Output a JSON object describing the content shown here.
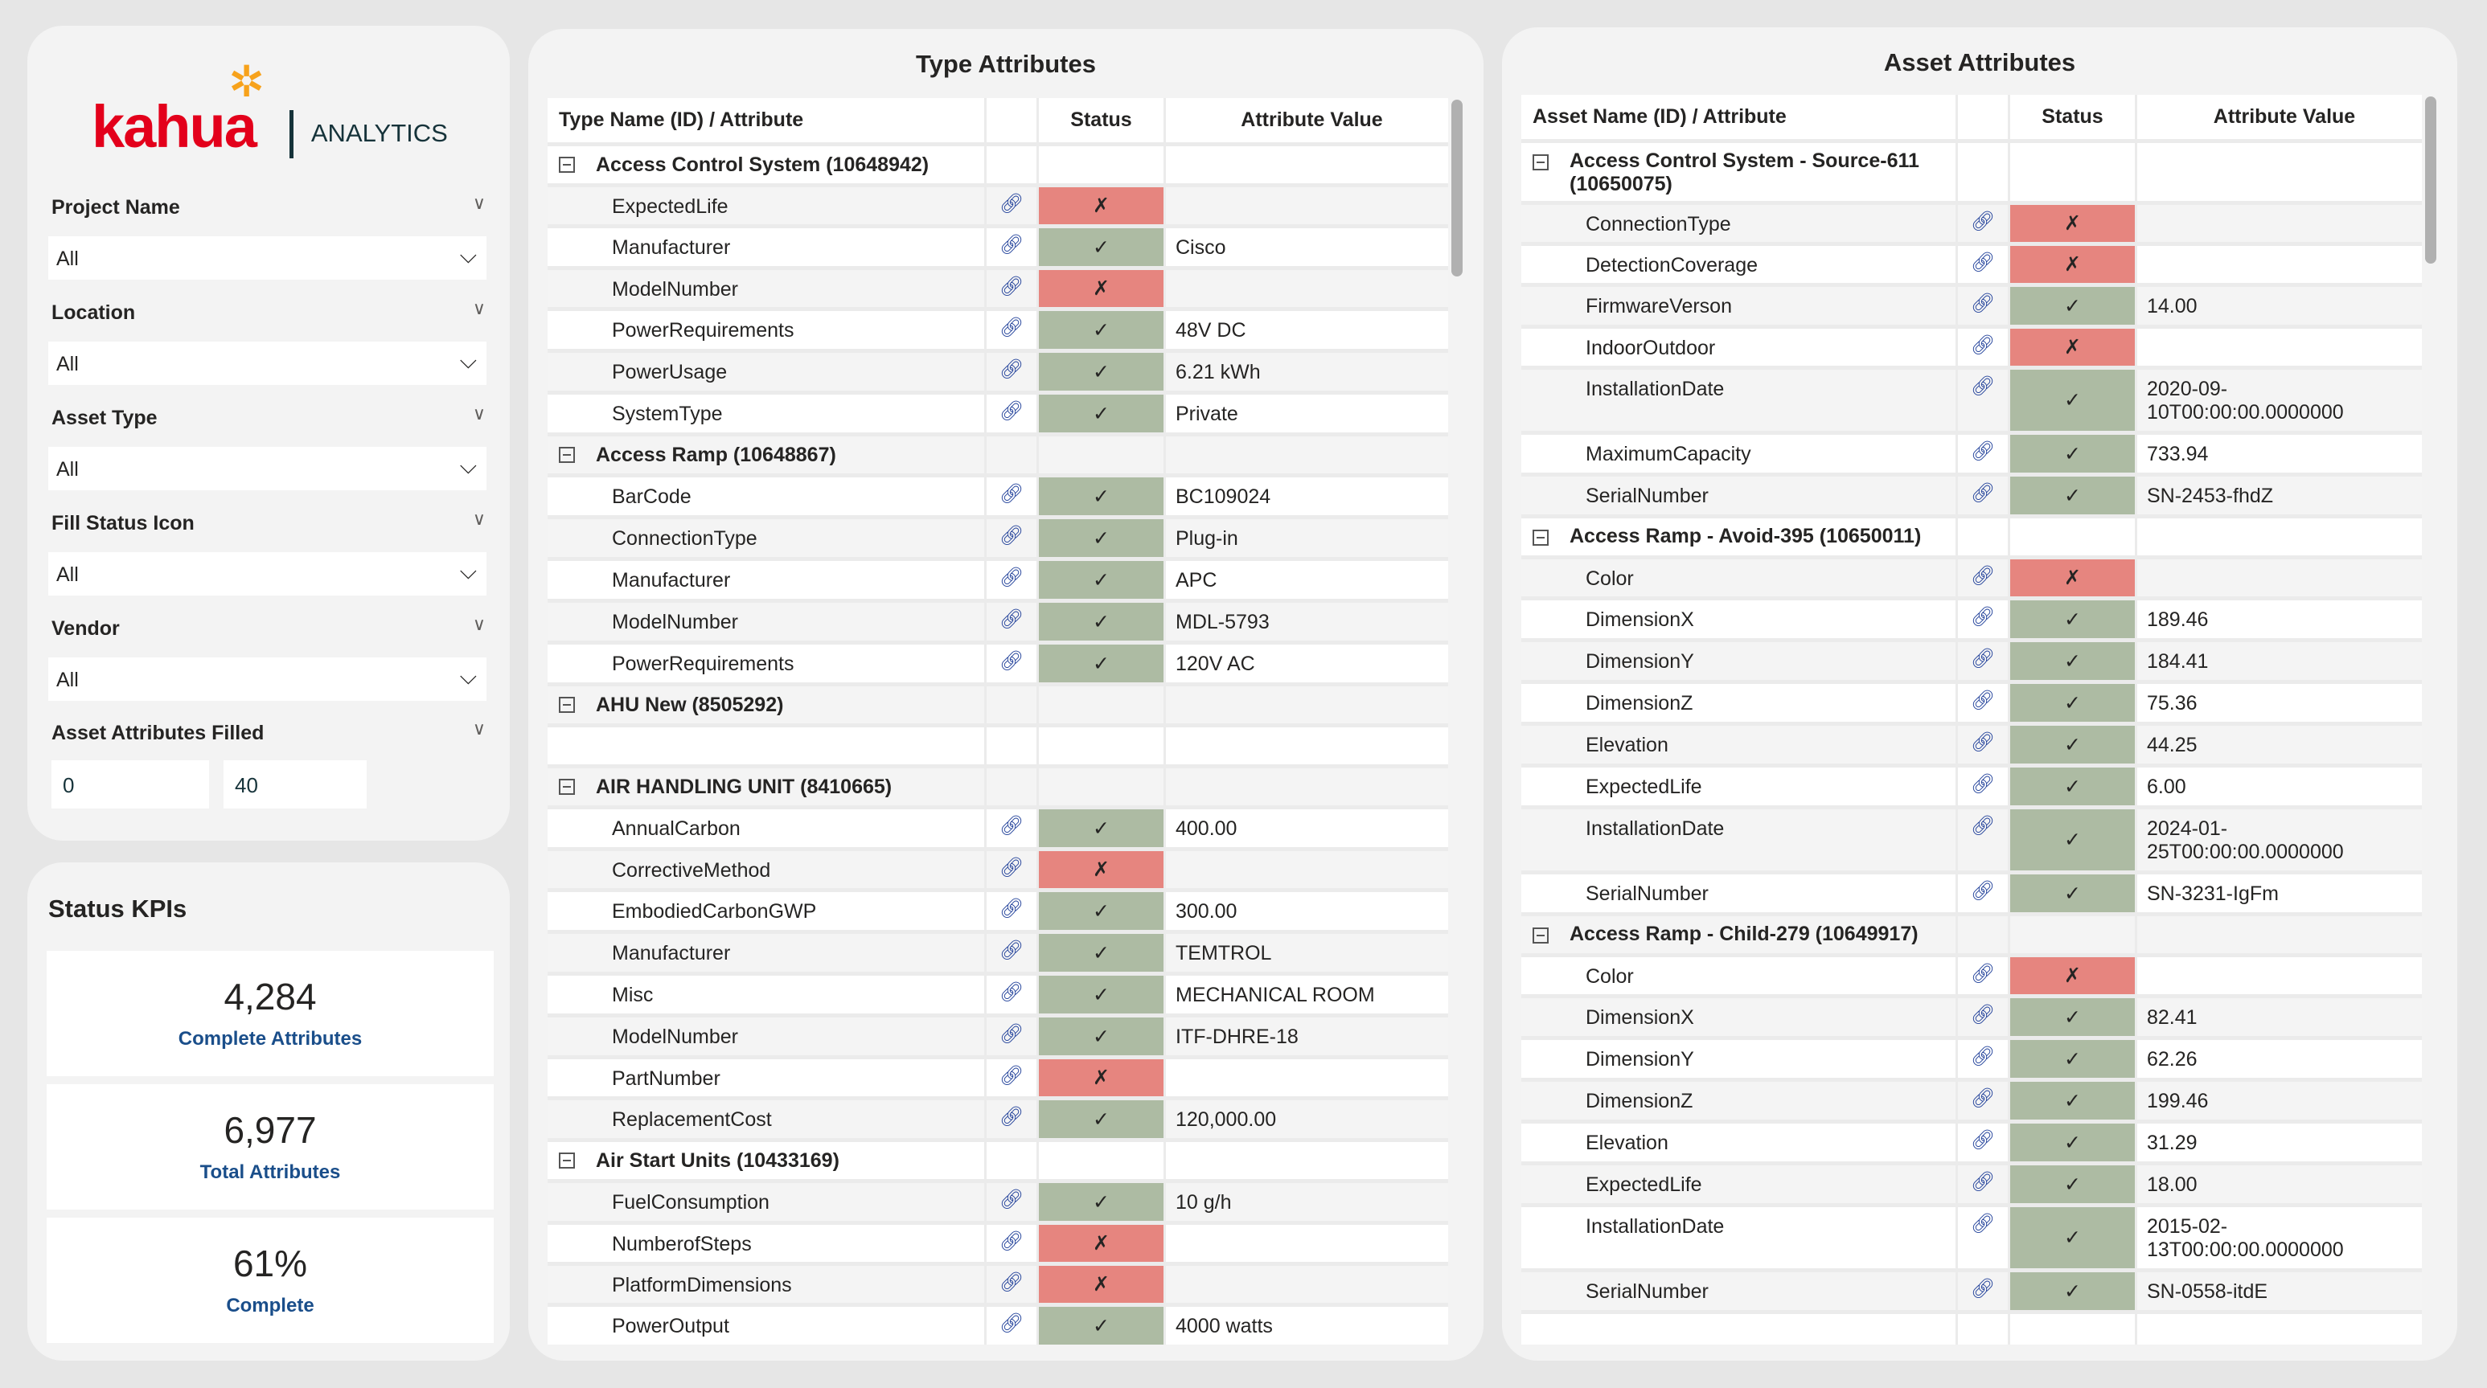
{
  "brand": {
    "logo": "kahua",
    "product": "ANALYTICS"
  },
  "filters": [
    {
      "label": "Project Name",
      "value": "All"
    },
    {
      "label": "Location",
      "value": "All"
    },
    {
      "label": "Asset Type",
      "value": "All"
    },
    {
      "label": "Fill Status Icon",
      "value": "All"
    },
    {
      "label": "Vendor",
      "value": "All"
    }
  ],
  "range": {
    "label": "Asset Attributes Filled",
    "min": "0",
    "max": "40"
  },
  "kpis": {
    "title": "Status KPIs",
    "cards": [
      {
        "value": "4,284",
        "label": "Complete Attributes"
      },
      {
        "value": "6,977",
        "label": "Total Attributes"
      },
      {
        "value": "61%",
        "label": "Complete"
      }
    ]
  },
  "colors": {
    "ok": "#adbba3",
    "missing": "#e6857f",
    "link": "#1f3f99"
  },
  "icons": {
    "ok": "✓",
    "missing": "✗",
    "link": "link-icon"
  },
  "type_table": {
    "title": "Type Attributes",
    "headers": [
      "Type Name (ID) / Attribute",
      "",
      "Status",
      "Attribute Value"
    ],
    "rows": [
      {
        "k": "g",
        "name": "Access Control System (10648942)"
      },
      {
        "k": "a",
        "name": "ExpectedLife",
        "s": "missing",
        "v": ""
      },
      {
        "k": "a",
        "name": "Manufacturer",
        "s": "ok",
        "v": "Cisco"
      },
      {
        "k": "a",
        "name": "ModelNumber",
        "s": "missing",
        "v": ""
      },
      {
        "k": "a",
        "name": "PowerRequirements",
        "s": "ok",
        "v": "48V DC"
      },
      {
        "k": "a",
        "name": "PowerUsage",
        "s": "ok",
        "v": "6.21 kWh"
      },
      {
        "k": "a",
        "name": "SystemType",
        "s": "ok",
        "v": "Private"
      },
      {
        "k": "g",
        "name": "Access Ramp (10648867)"
      },
      {
        "k": "a",
        "name": "BarCode",
        "s": "ok",
        "v": "BC109024"
      },
      {
        "k": "a",
        "name": "ConnectionType",
        "s": "ok",
        "v": "Plug-in"
      },
      {
        "k": "a",
        "name": "Manufacturer",
        "s": "ok",
        "v": "APC"
      },
      {
        "k": "a",
        "name": "ModelNumber",
        "s": "ok",
        "v": "MDL-5793"
      },
      {
        "k": "a",
        "name": "PowerRequirements",
        "s": "ok",
        "v": "120V AC"
      },
      {
        "k": "g",
        "name": "AHU New (8505292)"
      },
      {
        "k": "b",
        "name": ""
      },
      {
        "k": "g",
        "name": "AIR HANDLING UNIT (8410665)"
      },
      {
        "k": "a",
        "name": "AnnualCarbon",
        "s": "ok",
        "v": "400.00"
      },
      {
        "k": "a",
        "name": "CorrectiveMethod",
        "s": "missing",
        "v": ""
      },
      {
        "k": "a",
        "name": "EmbodiedCarbonGWP",
        "s": "ok",
        "v": "300.00"
      },
      {
        "k": "a",
        "name": "Manufacturer",
        "s": "ok",
        "v": "TEMTROL"
      },
      {
        "k": "a",
        "name": "Misc",
        "s": "ok",
        "v": "MECHANICAL ROOM"
      },
      {
        "k": "a",
        "name": "ModelNumber",
        "s": "ok",
        "v": "ITF-DHRE-18"
      },
      {
        "k": "a",
        "name": "PartNumber",
        "s": "missing",
        "v": ""
      },
      {
        "k": "a",
        "name": "ReplacementCost",
        "s": "ok",
        "v": "120,000.00"
      },
      {
        "k": "g",
        "name": "Air Start Units (10433169)"
      },
      {
        "k": "a",
        "name": "FuelConsumption",
        "s": "ok",
        "v": "10 g/h"
      },
      {
        "k": "a",
        "name": "NumberofSteps",
        "s": "missing",
        "v": ""
      },
      {
        "k": "a",
        "name": "PlatformDimensions",
        "s": "missing",
        "v": ""
      },
      {
        "k": "a",
        "name": "PowerOutput",
        "s": "ok",
        "v": "4000 watts"
      },
      {
        "k": "b",
        "name": ""
      }
    ]
  },
  "asset_table": {
    "title": "Asset Attributes",
    "headers": [
      "Asset Name (ID) / Attribute",
      "",
      "Status",
      "Attribute Value"
    ],
    "rows": [
      {
        "k": "g",
        "name": "Access Control System - Source-611 (10650075)"
      },
      {
        "k": "a",
        "name": "ConnectionType",
        "s": "missing",
        "v": ""
      },
      {
        "k": "a",
        "name": "DetectionCoverage",
        "s": "missing",
        "v": ""
      },
      {
        "k": "a",
        "name": "FirmwareVerson",
        "s": "ok",
        "v": "14.00"
      },
      {
        "k": "a",
        "name": "IndoorOutdoor",
        "s": "missing",
        "v": ""
      },
      {
        "k": "a",
        "name": "InstallationDate",
        "s": "ok",
        "v": "2020-09-10T00:00:00.0000000"
      },
      {
        "k": "a",
        "name": "MaximumCapacity",
        "s": "ok",
        "v": "733.94"
      },
      {
        "k": "a",
        "name": "SerialNumber",
        "s": "ok",
        "v": "SN-2453-fhdZ"
      },
      {
        "k": "g",
        "name": "Access Ramp - Avoid-395 (10650011)"
      },
      {
        "k": "a",
        "name": "Color",
        "s": "missing",
        "v": ""
      },
      {
        "k": "a",
        "name": "DimensionX",
        "s": "ok",
        "v": "189.46"
      },
      {
        "k": "a",
        "name": "DimensionY",
        "s": "ok",
        "v": "184.41"
      },
      {
        "k": "a",
        "name": "DimensionZ",
        "s": "ok",
        "v": "75.36"
      },
      {
        "k": "a",
        "name": "Elevation",
        "s": "ok",
        "v": "44.25"
      },
      {
        "k": "a",
        "name": "ExpectedLife",
        "s": "ok",
        "v": "6.00"
      },
      {
        "k": "a",
        "name": "InstallationDate",
        "s": "ok",
        "v": "2024-01-25T00:00:00.0000000"
      },
      {
        "k": "a",
        "name": "SerialNumber",
        "s": "ok",
        "v": "SN-3231-IgFm"
      },
      {
        "k": "g",
        "name": "Access Ramp - Child-279 (10649917)"
      },
      {
        "k": "a",
        "name": "Color",
        "s": "missing",
        "v": ""
      },
      {
        "k": "a",
        "name": "DimensionX",
        "s": "ok",
        "v": "82.41"
      },
      {
        "k": "a",
        "name": "DimensionY",
        "s": "ok",
        "v": "62.26"
      },
      {
        "k": "a",
        "name": "DimensionZ",
        "s": "ok",
        "v": "199.46"
      },
      {
        "k": "a",
        "name": "Elevation",
        "s": "ok",
        "v": "31.29"
      },
      {
        "k": "a",
        "name": "ExpectedLife",
        "s": "ok",
        "v": "18.00"
      },
      {
        "k": "a",
        "name": "InstallationDate",
        "s": "ok",
        "v": "2015-02-13T00:00:00.0000000"
      },
      {
        "k": "a",
        "name": "SerialNumber",
        "s": "ok",
        "v": "SN-0558-itdE"
      },
      {
        "k": "b",
        "name": ""
      }
    ]
  }
}
